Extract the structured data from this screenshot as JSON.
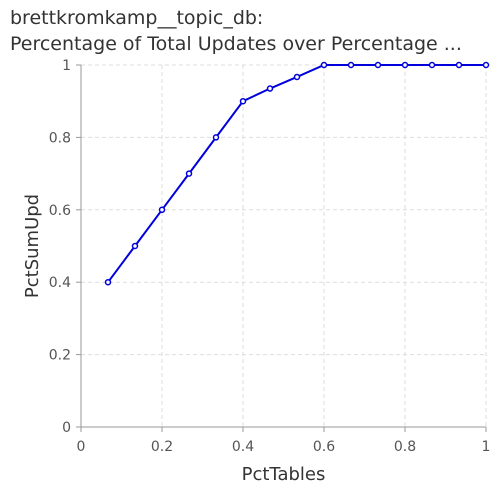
{
  "chart_data": {
    "type": "line",
    "title_line1": "brettkromkamp__topic_db:",
    "title_line2": "Percentage of Total Updates over Percentage ...",
    "xlabel": "PctTables",
    "ylabel": "PctSumUpd",
    "xlim": [
      0,
      1
    ],
    "ylim": [
      0,
      1
    ],
    "xticks": [
      "0",
      "0.2",
      "0.4",
      "0.6",
      "0.8",
      "1"
    ],
    "yticks": [
      "0",
      "0.2",
      "0.4",
      "0.6",
      "0.8",
      "1"
    ],
    "grid": true,
    "line_color": "#0000dd",
    "series": [
      {
        "x": [
          0.0667,
          0.1333,
          0.2,
          0.2667,
          0.3333,
          0.4,
          0.4667,
          0.5333,
          0.6,
          0.6667,
          0.7333,
          0.8,
          0.8667,
          0.9333,
          1.0
        ],
        "values": [
          0.4,
          0.5,
          0.6,
          0.7,
          0.8,
          0.9,
          0.935,
          0.967,
          1.0,
          1.0,
          1.0,
          1.0,
          1.0,
          1.0,
          1.0
        ]
      }
    ]
  }
}
